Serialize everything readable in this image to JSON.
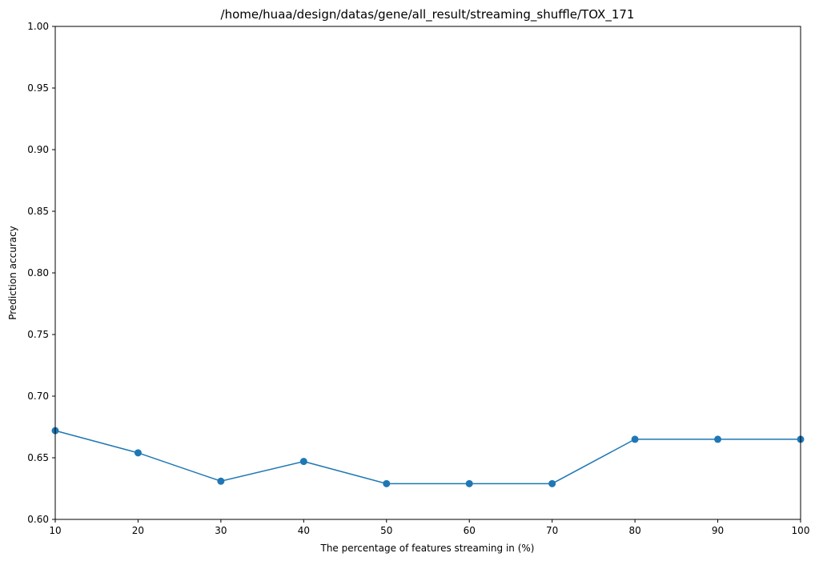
{
  "chart_data": {
    "type": "line",
    "title": "/home/huaa/design/datas/gene/all_result/streaming_shuffle/TOX_171",
    "xlabel": "The percentage of features streaming in (%)",
    "ylabel": "Prediction accuracy",
    "xlim": [
      10,
      100
    ],
    "ylim": [
      0.6,
      1.0
    ],
    "xticks": [
      "10",
      "20",
      "30",
      "40",
      "50",
      "60",
      "70",
      "80",
      "90",
      "100"
    ],
    "yticks": [
      "0.60",
      "0.65",
      "0.70",
      "0.75",
      "0.80",
      "0.85",
      "0.90",
      "0.95",
      "1.00"
    ],
    "grid": false,
    "legend": "none",
    "x": [
      10,
      20,
      30,
      40,
      50,
      60,
      70,
      80,
      90,
      100
    ],
    "series": [
      {
        "values": [
          0.672,
          0.654,
          0.631,
          0.647,
          0.629,
          0.629,
          0.629,
          0.665,
          0.665,
          0.665
        ],
        "color": "#1f77b4",
        "marker": "circle"
      }
    ]
  }
}
